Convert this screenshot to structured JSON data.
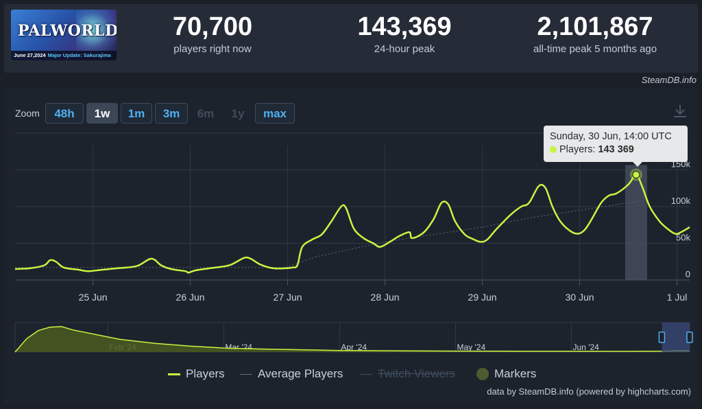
{
  "header": {
    "game": {
      "title": "PALWORLD",
      "date": "June 27,2024",
      "update": "Major Update: Sakurajima"
    },
    "stats": [
      {
        "value": "70,700",
        "label": "players right now"
      },
      {
        "value": "143,369",
        "label": "24-hour peak"
      },
      {
        "value": "2,101,867",
        "label": "all-time peak 5 months ago"
      }
    ],
    "attribution": "SteamDB.info"
  },
  "zoom": {
    "label": "Zoom",
    "buttons": [
      {
        "label": "48h",
        "state": "normal"
      },
      {
        "label": "1w",
        "state": "active"
      },
      {
        "label": "1m",
        "state": "normal"
      },
      {
        "label": "3m",
        "state": "normal"
      },
      {
        "label": "6m",
        "state": "disabled"
      },
      {
        "label": "1y",
        "state": "disabled"
      },
      {
        "label": "max",
        "state": "normal"
      }
    ]
  },
  "tooltip": {
    "date": "Sunday, 30 Jun, 14:00 UTC",
    "series": "Players",
    "value": "143 369"
  },
  "legend": {
    "players": "Players",
    "average": "Average Players",
    "twitch": "Twitch Viewers",
    "markers": "Markers"
  },
  "footer": "data by SteamDB.info (powered by highcharts.com)",
  "colors": {
    "players": "#c7f542",
    "average": "#5d6b7a",
    "grid": "#2f3845",
    "navigator_window": "#3a4a7a"
  },
  "chart_data": {
    "type": "line",
    "title": "",
    "xlabel": "",
    "ylabel": "",
    "x_ticks": [
      "25 Jun",
      "26 Jun",
      "27 Jun",
      "28 Jun",
      "29 Jun",
      "30 Jun",
      "1 Jul"
    ],
    "y_ticks": [
      "0",
      "50k",
      "100k",
      "150k"
    ],
    "ylim": [
      0,
      200000
    ],
    "x_range_days": [
      24.2,
      31.13
    ],
    "grid": true,
    "series": [
      {
        "name": "Players",
        "points": [
          [
            24.2,
            15000
          ],
          [
            24.35,
            16000
          ],
          [
            24.5,
            20000
          ],
          [
            24.56,
            27000
          ],
          [
            24.62,
            25000
          ],
          [
            24.7,
            17000
          ],
          [
            24.85,
            14000
          ],
          [
            24.95,
            12000
          ],
          [
            25.1,
            14000
          ],
          [
            25.25,
            16000
          ],
          [
            25.45,
            19000
          ],
          [
            25.6,
            29000
          ],
          [
            25.7,
            20000
          ],
          [
            25.8,
            15000
          ],
          [
            25.95,
            12000
          ],
          [
            25.98,
            10000
          ],
          [
            26.05,
            13000
          ],
          [
            26.2,
            16000
          ],
          [
            26.4,
            20000
          ],
          [
            26.55,
            30000
          ],
          [
            26.62,
            29000
          ],
          [
            26.72,
            21000
          ],
          [
            26.85,
            16000
          ],
          [
            26.98,
            16000
          ],
          [
            27.05,
            17000
          ],
          [
            27.1,
            20000
          ],
          [
            27.15,
            45000
          ],
          [
            27.25,
            55000
          ],
          [
            27.35,
            62000
          ],
          [
            27.45,
            80000
          ],
          [
            27.55,
            100000
          ],
          [
            27.6,
            98000
          ],
          [
            27.68,
            70000
          ],
          [
            27.78,
            57000
          ],
          [
            27.88,
            50000
          ],
          [
            27.95,
            45000
          ],
          [
            28.05,
            52000
          ],
          [
            28.15,
            60000
          ],
          [
            28.25,
            65000
          ],
          [
            28.28,
            57000
          ],
          [
            28.4,
            65000
          ],
          [
            28.5,
            83000
          ],
          [
            28.58,
            105000
          ],
          [
            28.65,
            103000
          ],
          [
            28.72,
            80000
          ],
          [
            28.82,
            62000
          ],
          [
            28.9,
            56000
          ],
          [
            28.98,
            52000
          ],
          [
            29.05,
            55000
          ],
          [
            29.15,
            70000
          ],
          [
            29.3,
            90000
          ],
          [
            29.4,
            100000
          ],
          [
            29.48,
            105000
          ],
          [
            29.58,
            128000
          ],
          [
            29.65,
            125000
          ],
          [
            29.72,
            100000
          ],
          [
            29.8,
            80000
          ],
          [
            29.9,
            67000
          ],
          [
            29.98,
            63000
          ],
          [
            30.05,
            68000
          ],
          [
            30.12,
            82000
          ],
          [
            30.22,
            105000
          ],
          [
            30.3,
            115000
          ],
          [
            30.38,
            118000
          ],
          [
            30.5,
            130000
          ],
          [
            30.58,
            143369
          ],
          [
            30.64,
            128000
          ],
          [
            30.72,
            100000
          ],
          [
            30.82,
            80000
          ],
          [
            30.9,
            70000
          ],
          [
            30.98,
            63000
          ],
          [
            31.04,
            65000
          ],
          [
            31.13,
            72000
          ]
        ]
      },
      {
        "name": "Average Players",
        "points": [
          [
            24.2,
            17000
          ],
          [
            26.98,
            17000
          ],
          [
            27.3,
            32000
          ],
          [
            28.0,
            52000
          ],
          [
            28.5,
            62000
          ],
          [
            29.0,
            72000
          ],
          [
            29.5,
            85000
          ],
          [
            30.0,
            95000
          ],
          [
            30.5,
            105000
          ],
          [
            30.65,
            108000
          ]
        ]
      }
    ],
    "annotation": {
      "x": 30.58,
      "y": 143369,
      "label": "143 369"
    },
    "navigator": {
      "months": [
        "Feb '24",
        "Mar '24",
        "Apr '24",
        "May '24",
        "Jun '24"
      ],
      "range_months": [
        1.2,
        7.02
      ],
      "series": [
        [
          1.2,
          500
        ],
        [
          1.3,
          1000000
        ],
        [
          1.4,
          1600000
        ],
        [
          1.5,
          1850000
        ],
        [
          1.6,
          1900000
        ],
        [
          1.7,
          1650000
        ],
        [
          1.9,
          1300000
        ],
        [
          2.1,
          950000
        ],
        [
          2.4,
          650000
        ],
        [
          2.7,
          450000
        ],
        [
          3.0,
          300000
        ],
        [
          3.3,
          230000
        ],
        [
          3.7,
          170000
        ],
        [
          4.0,
          120000
        ],
        [
          4.5,
          90000
        ],
        [
          5.0,
          70000
        ],
        [
          5.5,
          60000
        ],
        [
          6.0,
          55000
        ],
        [
          6.5,
          50000
        ],
        [
          6.8,
          60000
        ],
        [
          6.95,
          110000
        ],
        [
          7.02,
          70000
        ]
      ],
      "ylim": [
        0,
        2200000
      ],
      "window_months": [
        6.78,
        7.02
      ]
    }
  }
}
